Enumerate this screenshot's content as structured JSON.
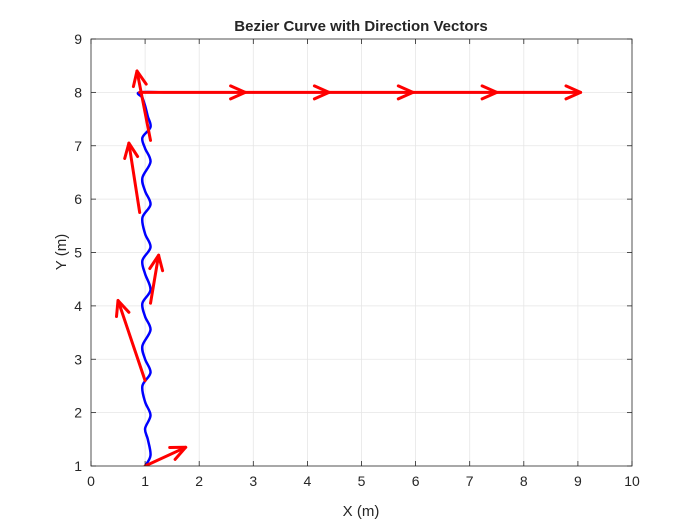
{
  "chart_data": {
    "type": "line",
    "title": "Bezier Curve with Direction Vectors",
    "xlabel": "X (m)",
    "ylabel": "Y (m)",
    "xlim": [
      0,
      10
    ],
    "ylim": [
      1,
      9
    ],
    "xticks": [
      "0",
      "1",
      "2",
      "3",
      "4",
      "5",
      "6",
      "7",
      "8",
      "9",
      "10"
    ],
    "yticks": [
      "1",
      "2",
      "3",
      "4",
      "5",
      "6",
      "7",
      "8",
      "9"
    ],
    "grid": true,
    "legend": "none",
    "colors": {
      "curve": "#0000ff",
      "vector": "#ff0000",
      "grid": "#e6e6e6",
      "axis": "#262626"
    },
    "series": [
      {
        "style": "curve",
        "x": [
          1.0,
          1.1,
          1.05,
          1.0,
          1.1,
          1.0,
          0.95,
          1.1,
          1.0,
          0.95,
          1.1,
          1.0,
          0.95,
          1.1,
          1.0,
          0.95,
          1.1,
          1.0,
          0.95,
          1.1,
          1.0,
          0.95,
          1.1,
          1.0,
          0.95,
          1.1,
          1.05,
          1.0,
          0.95,
          0.9,
          1.5,
          3,
          4.5,
          6,
          7.5,
          9.0
        ],
        "y": [
          1.0,
          1.2,
          1.5,
          1.7,
          1.95,
          2.2,
          2.5,
          2.75,
          3.0,
          3.25,
          3.55,
          3.8,
          4.05,
          4.3,
          4.6,
          4.85,
          5.1,
          5.35,
          5.65,
          5.9,
          6.15,
          6.4,
          6.7,
          6.95,
          7.15,
          7.35,
          7.55,
          7.75,
          7.9,
          8.0,
          8.0,
          8.0,
          8.0,
          8.0,
          8.0,
          8.0
        ]
      },
      {
        "style": "vectors",
        "segments": [
          {
            "x0": 1.0,
            "y0": 1.0,
            "x1": 1.75,
            "y1": 1.35
          },
          {
            "x0": 1.0,
            "y0": 2.6,
            "x1": 0.5,
            "y1": 4.1
          },
          {
            "x0": 1.1,
            "y0": 4.05,
            "x1": 1.25,
            "y1": 4.95
          },
          {
            "x0": 0.9,
            "y0": 5.75,
            "x1": 0.7,
            "y1": 7.05
          },
          {
            "x0": 1.1,
            "y0": 7.1,
            "x1": 0.85,
            "y1": 8.4
          },
          {
            "x0": 0.9,
            "y0": 8.0,
            "x1": 2.85,
            "y1": 8.0
          },
          {
            "x0": 2.85,
            "y0": 8.0,
            "x1": 4.4,
            "y1": 8.0
          },
          {
            "x0": 4.4,
            "y0": 8.0,
            "x1": 5.95,
            "y1": 8.0
          },
          {
            "x0": 5.95,
            "y0": 8.0,
            "x1": 7.5,
            "y1": 8.0
          },
          {
            "x0": 7.5,
            "y0": 8.0,
            "x1": 9.05,
            "y1": 8.0
          }
        ]
      }
    ]
  }
}
